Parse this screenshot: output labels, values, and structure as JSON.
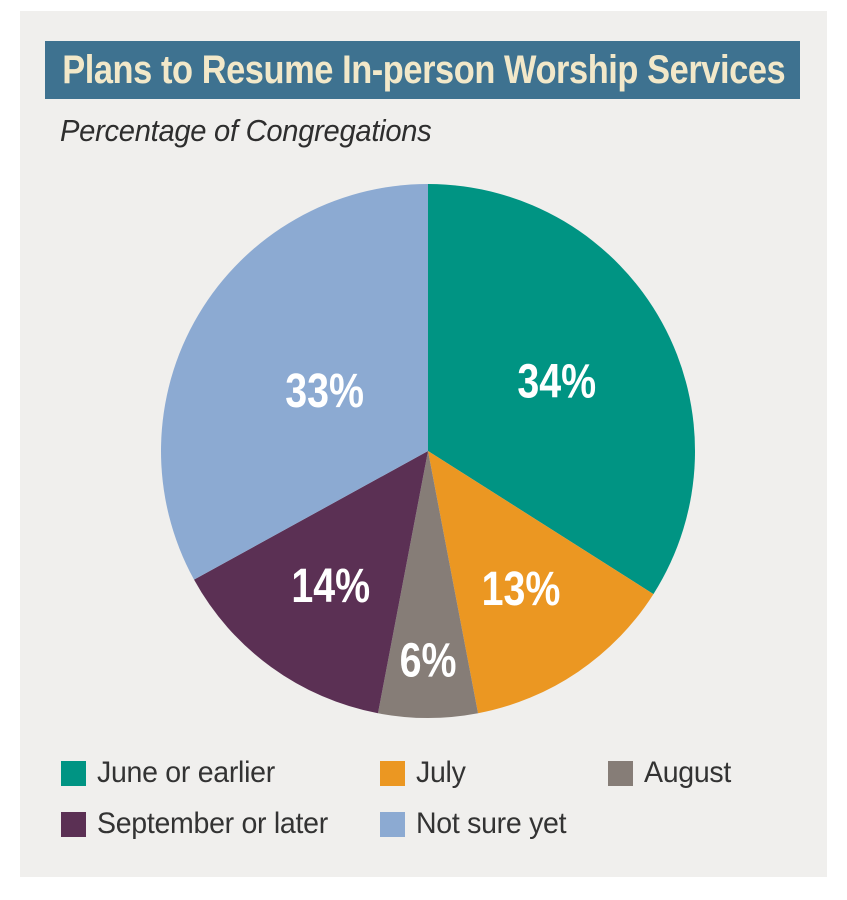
{
  "header": {
    "title": "Plans to Resume In-person Worship Services",
    "subtitle": "Percentage of Congregations"
  },
  "colors": {
    "page_background": "#FFFFFF",
    "panel_background": "#F0EFED",
    "title_bar": "#3E7290",
    "title_text": "#F2E8C9",
    "subtitle_text": "#2E2E2E",
    "legend_text": "#333333",
    "slice_label_text": "#FFFFFF"
  },
  "chart_data": {
    "type": "pie",
    "title": "Plans to Resume In-person Worship Services",
    "subtitle": "Percentage of Congregations",
    "unit": "%",
    "start_angle_deg": 0,
    "direction": "clockwise",
    "legend_position": "bottom",
    "grid": false,
    "slices": [
      {
        "label": "June or earlier",
        "value": 34,
        "display": "34%",
        "color": "#009483"
      },
      {
        "label": "July",
        "value": 13,
        "display": "13%",
        "color": "#EB9722"
      },
      {
        "label": "August",
        "value": 6,
        "display": "6%",
        "color": "#867D77"
      },
      {
        "label": "September or later",
        "value": 14,
        "display": "14%",
        "color": "#5B3054"
      },
      {
        "label": "Not sure yet",
        "value": 33,
        "display": "33%",
        "color": "#8CAAD2"
      }
    ]
  }
}
